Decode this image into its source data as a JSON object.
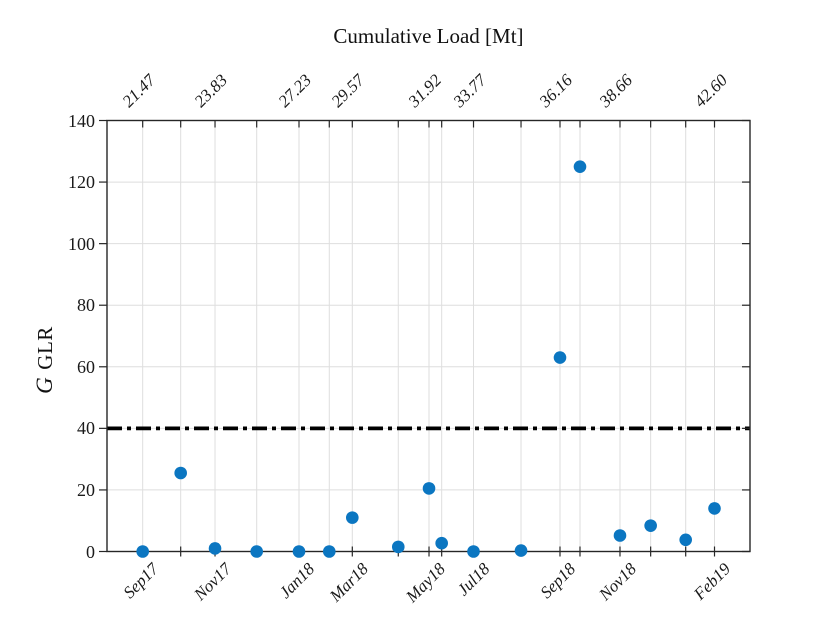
{
  "chart_data": {
    "type": "scatter",
    "top_axis_title": "Cumulative Load [Mt]",
    "ylabel_script": "G",
    "ylabel_text": "GLR",
    "ylim": [
      0,
      140
    ],
    "yticks": [
      0,
      20,
      40,
      60,
      80,
      100,
      120,
      140
    ],
    "grid": true,
    "legend": "none",
    "marker_color": "#0B76C1",
    "axis_color": "#262626",
    "grid_color": "#dedede",
    "threshold_line": {
      "y": 40,
      "style": "dash-dot",
      "color": "#000000"
    },
    "points": [
      {
        "x_frac": 0.0555,
        "glr": 0
      },
      {
        "x_frac": 0.1146,
        "glr": 25.5
      },
      {
        "x_frac": 0.168,
        "glr": 1
      },
      {
        "x_frac": 0.2328,
        "glr": 0
      },
      {
        "x_frac": 0.2986,
        "glr": 0
      },
      {
        "x_frac": 0.3457,
        "glr": 0
      },
      {
        "x_frac": 0.3815,
        "glr": 11
      },
      {
        "x_frac": 0.453,
        "glr": 1.5
      },
      {
        "x_frac": 0.5008,
        "glr": 20.5
      },
      {
        "x_frac": 0.5205,
        "glr": 2.7
      },
      {
        "x_frac": 0.57,
        "glr": 0
      },
      {
        "x_frac": 0.6439,
        "glr": 0.3
      },
      {
        "x_frac": 0.7045,
        "glr": 63
      },
      {
        "x_frac": 0.7356,
        "glr": 125
      },
      {
        "x_frac": 0.7978,
        "glr": 5.2
      },
      {
        "x_frac": 0.8455,
        "glr": 8.4
      },
      {
        "x_frac": 0.9,
        "glr": 3.8
      },
      {
        "x_frac": 0.9448,
        "glr": 14
      }
    ],
    "bottom_axis_labels": [
      {
        "label": "Sep17",
        "point_index": 0
      },
      {
        "label": "Nov17",
        "point_index": 2
      },
      {
        "label": "Jan18",
        "point_index": 4
      },
      {
        "label": "Mar18",
        "point_index": 6
      },
      {
        "label": "May18",
        "point_index": 8
      },
      {
        "label": "Jul18",
        "point_index": 10
      },
      {
        "label": "Sep18",
        "point_index": 12
      },
      {
        "label": "Nov18",
        "point_index": 14
      },
      {
        "label": "Feb19",
        "point_index": 17
      }
    ],
    "top_axis_labels": [
      {
        "label": "21.47",
        "point_index": 0
      },
      {
        "label": "23.83",
        "point_index": 2
      },
      {
        "label": "27.23",
        "point_index": 4
      },
      {
        "label": "29.57",
        "point_index": 6
      },
      {
        "label": "31.92",
        "point_index": 8
      },
      {
        "label": "33.77",
        "point_index": 10
      },
      {
        "label": "36.16",
        "point_index": 12
      },
      {
        "label": "38.66",
        "point_index": 14
      },
      {
        "label": "42.60",
        "point_index": 17
      }
    ]
  }
}
